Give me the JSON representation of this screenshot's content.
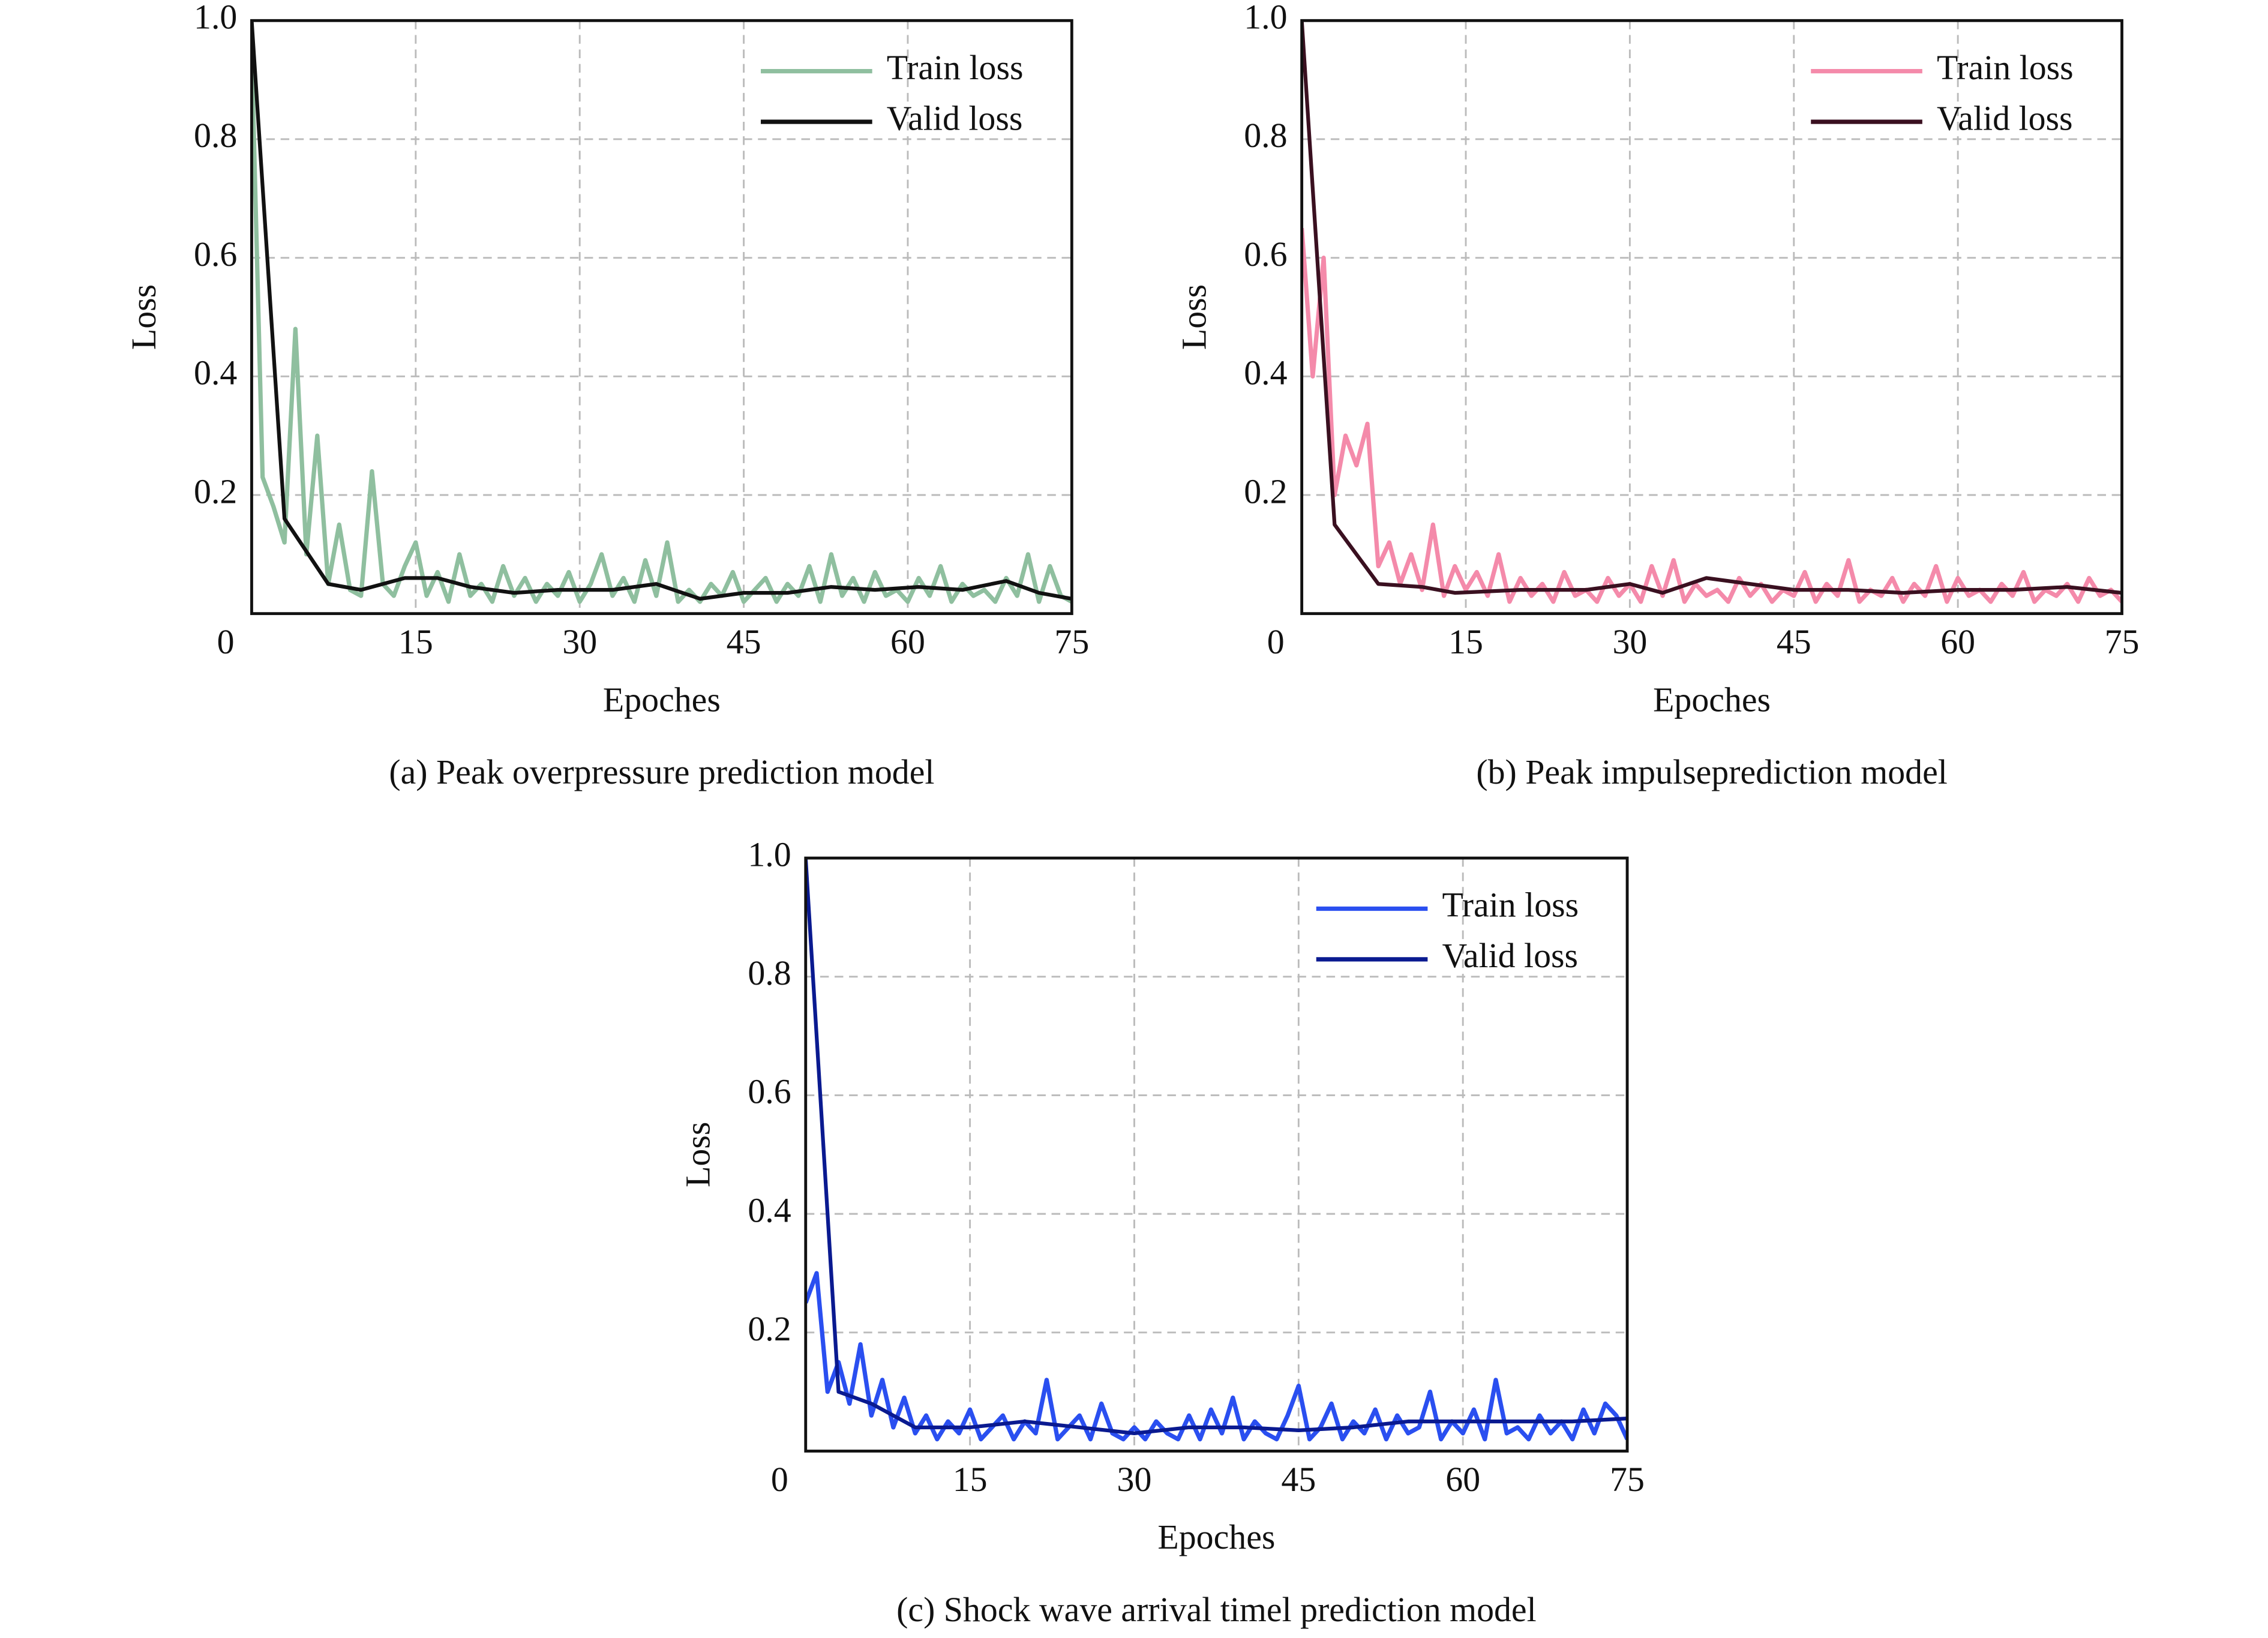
{
  "chart_data": [
    {
      "type": "line",
      "caption": "(a) Peak overpressure prediction model",
      "xlabel": "Epoches",
      "ylabel": "Loss",
      "xlim": [
        0,
        75
      ],
      "ylim": [
        0,
        1
      ],
      "xticks": [
        0,
        15,
        30,
        45,
        60,
        75
      ],
      "yticks": [
        0.2,
        0.4,
        0.6,
        0.8,
        {
          "value": 1,
          "label": "1.0"
        }
      ],
      "grid": true,
      "legend": "upper right",
      "series": [
        {
          "name": "Train loss",
          "color": "#8fbf9f",
          "x": [
            0,
            1,
            2,
            3,
            4,
            5,
            6,
            7,
            8,
            9,
            10,
            11,
            12,
            13,
            14,
            15,
            16,
            17,
            18,
            19,
            20,
            21,
            22,
            23,
            24,
            25,
            26,
            27,
            28,
            29,
            30,
            31,
            32,
            33,
            34,
            35,
            36,
            37,
            38,
            39,
            40,
            41,
            42,
            43,
            44,
            45,
            46,
            47,
            48,
            49,
            50,
            51,
            52,
            53,
            54,
            55,
            56,
            57,
            58,
            59,
            60,
            61,
            62,
            63,
            64,
            65,
            66,
            67,
            68,
            69,
            70,
            71,
            72,
            73,
            74,
            75
          ],
          "values": [
            0.95,
            0.23,
            0.18,
            0.12,
            0.48,
            0.1,
            0.3,
            0.05,
            0.15,
            0.04,
            0.03,
            0.24,
            0.05,
            0.03,
            0.08,
            0.12,
            0.03,
            0.07,
            0.02,
            0.1,
            0.03,
            0.05,
            0.02,
            0.08,
            0.03,
            0.06,
            0.02,
            0.05,
            0.03,
            0.07,
            0.02,
            0.05,
            0.1,
            0.03,
            0.06,
            0.02,
            0.09,
            0.03,
            0.12,
            0.02,
            0.04,
            0.02,
            0.05,
            0.03,
            0.07,
            0.02,
            0.04,
            0.06,
            0.02,
            0.05,
            0.03,
            0.08,
            0.02,
            0.1,
            0.03,
            0.06,
            0.02,
            0.07,
            0.03,
            0.04,
            0.02,
            0.06,
            0.03,
            0.08,
            0.02,
            0.05,
            0.03,
            0.04,
            0.02,
            0.06,
            0.03,
            0.1,
            0.02,
            0.08,
            0.03,
            0.02
          ]
        },
        {
          "name": "Valid loss",
          "color": "#111111",
          "x": [
            0,
            3,
            7,
            10,
            14,
            17,
            20,
            24,
            28,
            33,
            37,
            41,
            45,
            49,
            53,
            57,
            61,
            65,
            69,
            72,
            75
          ],
          "values": [
            1.0,
            0.16,
            0.05,
            0.04,
            0.06,
            0.06,
            0.045,
            0.035,
            0.04,
            0.04,
            0.05,
            0.025,
            0.035,
            0.035,
            0.045,
            0.04,
            0.045,
            0.04,
            0.055,
            0.035,
            0.025
          ]
        }
      ]
    },
    {
      "type": "line",
      "caption": "(b) Peak impulseprediction model",
      "xlabel": "Epoches",
      "ylabel": "Loss",
      "xlim": [
        0,
        75
      ],
      "ylim": [
        0,
        1
      ],
      "xticks": [
        0,
        15,
        30,
        45,
        60,
        75
      ],
      "yticks": [
        0.2,
        0.4,
        0.6,
        0.8,
        {
          "value": 1,
          "label": "1.0"
        }
      ],
      "grid": true,
      "legend": "upper right",
      "series": [
        {
          "name": "Train loss",
          "color": "#f48aaa",
          "x": [
            0,
            1,
            2,
            3,
            4,
            5,
            6,
            7,
            8,
            9,
            10,
            11,
            12,
            13,
            14,
            15,
            16,
            17,
            18,
            19,
            20,
            21,
            22,
            23,
            24,
            25,
            26,
            27,
            28,
            29,
            30,
            31,
            32,
            33,
            34,
            35,
            36,
            37,
            38,
            39,
            40,
            41,
            42,
            43,
            44,
            45,
            46,
            47,
            48,
            49,
            50,
            51,
            52,
            53,
            54,
            55,
            56,
            57,
            58,
            59,
            60,
            61,
            62,
            63,
            64,
            65,
            66,
            67,
            68,
            69,
            70,
            71,
            72,
            73,
            74,
            75
          ],
          "values": [
            0.65,
            0.4,
            0.6,
            0.2,
            0.3,
            0.25,
            0.32,
            0.08,
            0.12,
            0.05,
            0.1,
            0.04,
            0.15,
            0.03,
            0.08,
            0.04,
            0.07,
            0.03,
            0.1,
            0.02,
            0.06,
            0.03,
            0.05,
            0.02,
            0.07,
            0.03,
            0.04,
            0.02,
            0.06,
            0.03,
            0.05,
            0.02,
            0.08,
            0.03,
            0.09,
            0.02,
            0.05,
            0.03,
            0.04,
            0.02,
            0.06,
            0.03,
            0.05,
            0.02,
            0.04,
            0.03,
            0.07,
            0.02,
            0.05,
            0.03,
            0.09,
            0.02,
            0.04,
            0.03,
            0.06,
            0.02,
            0.05,
            0.03,
            0.08,
            0.02,
            0.06,
            0.03,
            0.04,
            0.02,
            0.05,
            0.03,
            0.07,
            0.02,
            0.04,
            0.03,
            0.05,
            0.02,
            0.06,
            0.03,
            0.04,
            0.02
          ]
        },
        {
          "name": "Valid loss",
          "color": "#3a1020",
          "x": [
            0,
            3,
            7,
            11,
            14,
            20,
            26,
            30,
            33,
            37,
            41,
            45,
            50,
            55,
            60,
            65,
            70,
            75
          ],
          "values": [
            1.0,
            0.15,
            0.05,
            0.045,
            0.035,
            0.04,
            0.04,
            0.05,
            0.035,
            0.06,
            0.05,
            0.04,
            0.04,
            0.035,
            0.04,
            0.04,
            0.045,
            0.035
          ]
        }
      ]
    },
    {
      "type": "line",
      "caption": "(c) Shock wave arrival timel prediction model",
      "xlabel": "Epoches",
      "ylabel": "Loss",
      "xlim": [
        0,
        75
      ],
      "ylim": [
        0,
        1
      ],
      "xticks": [
        0,
        15,
        30,
        45,
        60,
        75
      ],
      "yticks": [
        0.2,
        0.4,
        0.6,
        0.8,
        {
          "value": 1,
          "label": "1.0"
        }
      ],
      "grid": true,
      "legend": "upper right",
      "series": [
        {
          "name": "Train loss",
          "color": "#2a4ff0",
          "x": [
            0,
            1,
            2,
            3,
            4,
            5,
            6,
            7,
            8,
            9,
            10,
            11,
            12,
            13,
            14,
            15,
            16,
            17,
            18,
            19,
            20,
            21,
            22,
            23,
            24,
            25,
            26,
            27,
            28,
            29,
            30,
            31,
            32,
            33,
            34,
            35,
            36,
            37,
            38,
            39,
            40,
            41,
            42,
            43,
            44,
            45,
            46,
            47,
            48,
            49,
            50,
            51,
            52,
            53,
            54,
            55,
            56,
            57,
            58,
            59,
            60,
            61,
            62,
            63,
            64,
            65,
            66,
            67,
            68,
            69,
            70,
            71,
            72,
            73,
            74,
            75
          ],
          "values": [
            0.25,
            0.3,
            0.1,
            0.15,
            0.08,
            0.18,
            0.06,
            0.12,
            0.04,
            0.09,
            0.03,
            0.06,
            0.02,
            0.05,
            0.03,
            0.07,
            0.02,
            0.04,
            0.06,
            0.02,
            0.05,
            0.03,
            0.12,
            0.02,
            0.04,
            0.06,
            0.02,
            0.08,
            0.03,
            0.02,
            0.04,
            0.02,
            0.05,
            0.03,
            0.02,
            0.06,
            0.02,
            0.07,
            0.03,
            0.09,
            0.02,
            0.05,
            0.03,
            0.02,
            0.06,
            0.11,
            0.02,
            0.04,
            0.08,
            0.02,
            0.05,
            0.03,
            0.07,
            0.02,
            0.06,
            0.03,
            0.04,
            0.1,
            0.02,
            0.05,
            0.03,
            0.07,
            0.02,
            0.12,
            0.03,
            0.04,
            0.02,
            0.06,
            0.03,
            0.05,
            0.02,
            0.07,
            0.03,
            0.08,
            0.06,
            0.02
          ]
        },
        {
          "name": "Valid loss",
          "color": "#0a1a90",
          "x": [
            0,
            3,
            6,
            10,
            15,
            20,
            25,
            30,
            35,
            40,
            45,
            50,
            55,
            60,
            65,
            70,
            75
          ],
          "values": [
            1.0,
            0.1,
            0.08,
            0.04,
            0.04,
            0.05,
            0.04,
            0.03,
            0.04,
            0.04,
            0.035,
            0.04,
            0.05,
            0.05,
            0.05,
            0.05,
            0.055
          ]
        }
      ]
    }
  ]
}
